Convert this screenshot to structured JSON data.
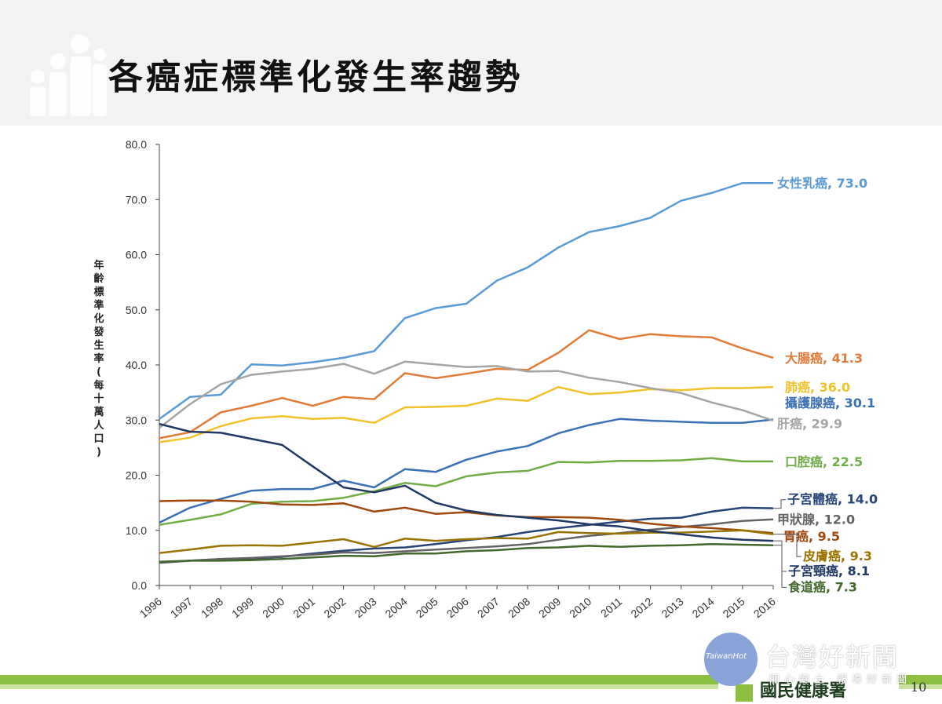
{
  "slide": {
    "title": "各癌症標準化發生率趨勢",
    "org": "國民健康署",
    "page_number": "10"
  },
  "watermark": {
    "logo_text": "TaiwanHot",
    "title": "台灣好新聞",
    "subtitle": "關心鄉土 報導好新聞"
  },
  "colors": {
    "green_accent": "#8cbf3f"
  },
  "chart_data": {
    "type": "line",
    "title": "各癌症標準化發生率趨勢",
    "ylabel": "年齡標準化發生率(每十萬人口)",
    "xlabel": "",
    "ylim": [
      0,
      80
    ],
    "yticks": [
      "0.0",
      "10.0",
      "20.0",
      "30.0",
      "40.0",
      "50.0",
      "60.0",
      "70.0",
      "80.0"
    ],
    "x": [
      "1996",
      "1997",
      "1998",
      "1999",
      "2000",
      "2001",
      "2002",
      "2003",
      "2004",
      "2005",
      "2006",
      "2007",
      "2008",
      "2009",
      "2010",
      "2011",
      "2012",
      "2013",
      "2014",
      "2015",
      "2016"
    ],
    "series": [
      {
        "name": "女性乳癌",
        "label": "女性乳癌, 73.0",
        "color": "#5b9bd5",
        "values": [
          30.2,
          34.2,
          34.6,
          40.1,
          39.9,
          40.5,
          41.3,
          42.5,
          48.5,
          50.3,
          51.1,
          55.3,
          57.7,
          61.3,
          64.1,
          65.2,
          66.7,
          69.8,
          71.2,
          73.0,
          73.0
        ]
      },
      {
        "name": "大腸癌",
        "label": "大腸癌, 41.3",
        "color": "#e07b39",
        "values": [
          26.7,
          27.8,
          31.4,
          32.6,
          34.0,
          32.6,
          34.2,
          33.8,
          38.5,
          37.6,
          38.4,
          39.3,
          39.1,
          42.2,
          46.3,
          44.7,
          45.6,
          45.2,
          45.0,
          43.0,
          41.3
        ]
      },
      {
        "name": "肺癌",
        "label": "肺癌, 36.0",
        "color": "#f2c22b",
        "values": [
          26.0,
          26.8,
          28.9,
          30.3,
          30.7,
          30.2,
          30.4,
          29.5,
          32.3,
          32.4,
          32.6,
          33.9,
          33.5,
          36.0,
          34.7,
          35.0,
          35.6,
          35.4,
          35.8,
          35.8,
          36.0
        ]
      },
      {
        "name": "攝護腺癌",
        "label": "攝護腺癌, 30.1",
        "color": "#3a70b5",
        "values": [
          11.4,
          14.1,
          15.7,
          17.2,
          17.5,
          17.5,
          19.0,
          17.8,
          21.1,
          20.6,
          22.8,
          24.3,
          25.3,
          27.6,
          29.1,
          30.2,
          29.9,
          29.7,
          29.5,
          29.5,
          30.1
        ]
      },
      {
        "name": "肝癌",
        "label": "肝癌, 29.9",
        "color": "#a5a5a5",
        "values": [
          28.6,
          32.9,
          36.5,
          38.2,
          38.8,
          39.3,
          40.2,
          38.4,
          40.6,
          40.1,
          39.6,
          39.8,
          38.8,
          38.9,
          37.7,
          36.9,
          35.8,
          34.9,
          33.2,
          31.8,
          29.9
        ]
      },
      {
        "name": "口腔癌",
        "label": "口腔癌, 22.5",
        "color": "#70ad47",
        "values": [
          11.0,
          11.9,
          12.9,
          14.8,
          15.2,
          15.3,
          15.9,
          17.1,
          18.6,
          18.0,
          19.8,
          20.5,
          20.8,
          22.4,
          22.3,
          22.6,
          22.6,
          22.7,
          23.1,
          22.5,
          22.5
        ]
      },
      {
        "name": "子宮體癌",
        "label": "子宮體癌, 14.0",
        "color": "#264478",
        "values": [
          4.2,
          4.5,
          4.8,
          4.9,
          5.2,
          5.8,
          6.3,
          6.7,
          6.9,
          7.5,
          8.2,
          8.8,
          9.7,
          10.4,
          11.0,
          11.6,
          12.1,
          12.3,
          13.4,
          14.1,
          14.0
        ]
      },
      {
        "name": "甲狀腺",
        "label": "甲狀腺, 12.0",
        "color": "#636363",
        "values": [
          4.1,
          4.5,
          4.8,
          5.0,
          5.3,
          5.6,
          6.0,
          5.9,
          6.2,
          6.5,
          6.8,
          7.1,
          7.5,
          8.3,
          9.0,
          9.5,
          10.1,
          10.6,
          11.1,
          11.7,
          12.0
        ]
      },
      {
        "name": "胃癌",
        "label": "胃癌, 9.5",
        "color": "#9e480e",
        "values": [
          15.3,
          15.4,
          15.4,
          15.2,
          14.7,
          14.6,
          14.9,
          13.4,
          14.1,
          13.0,
          13.3,
          12.7,
          12.4,
          12.4,
          12.3,
          11.9,
          11.2,
          10.7,
          10.4,
          10.0,
          9.5
        ]
      },
      {
        "name": "皮膚癌",
        "label": "皮膚癌, 9.3",
        "color": "#997300",
        "values": [
          5.9,
          6.5,
          7.2,
          7.3,
          7.2,
          7.8,
          8.4,
          7.0,
          8.5,
          8.1,
          8.4,
          8.6,
          8.5,
          9.7,
          9.5,
          9.4,
          9.6,
          9.6,
          9.8,
          10.0,
          9.3
        ]
      },
      {
        "name": "子宮頸癌",
        "label": "子宮頸癌, 8.1",
        "color": "#203864",
        "values": [
          29.3,
          27.9,
          27.7,
          26.6,
          25.5,
          21.6,
          17.8,
          16.9,
          18.1,
          15.0,
          13.6,
          12.8,
          12.3,
          11.8,
          11.1,
          10.7,
          9.9,
          9.3,
          8.7,
          8.3,
          8.1
        ]
      },
      {
        "name": "食道癌",
        "label": "食道癌, 7.3",
        "color": "#43682b",
        "values": [
          4.3,
          4.5,
          4.5,
          4.6,
          4.8,
          5.1,
          5.4,
          5.3,
          5.8,
          5.8,
          6.2,
          6.4,
          6.8,
          6.9,
          7.2,
          7.0,
          7.2,
          7.3,
          7.5,
          7.4,
          7.3
        ]
      }
    ]
  }
}
